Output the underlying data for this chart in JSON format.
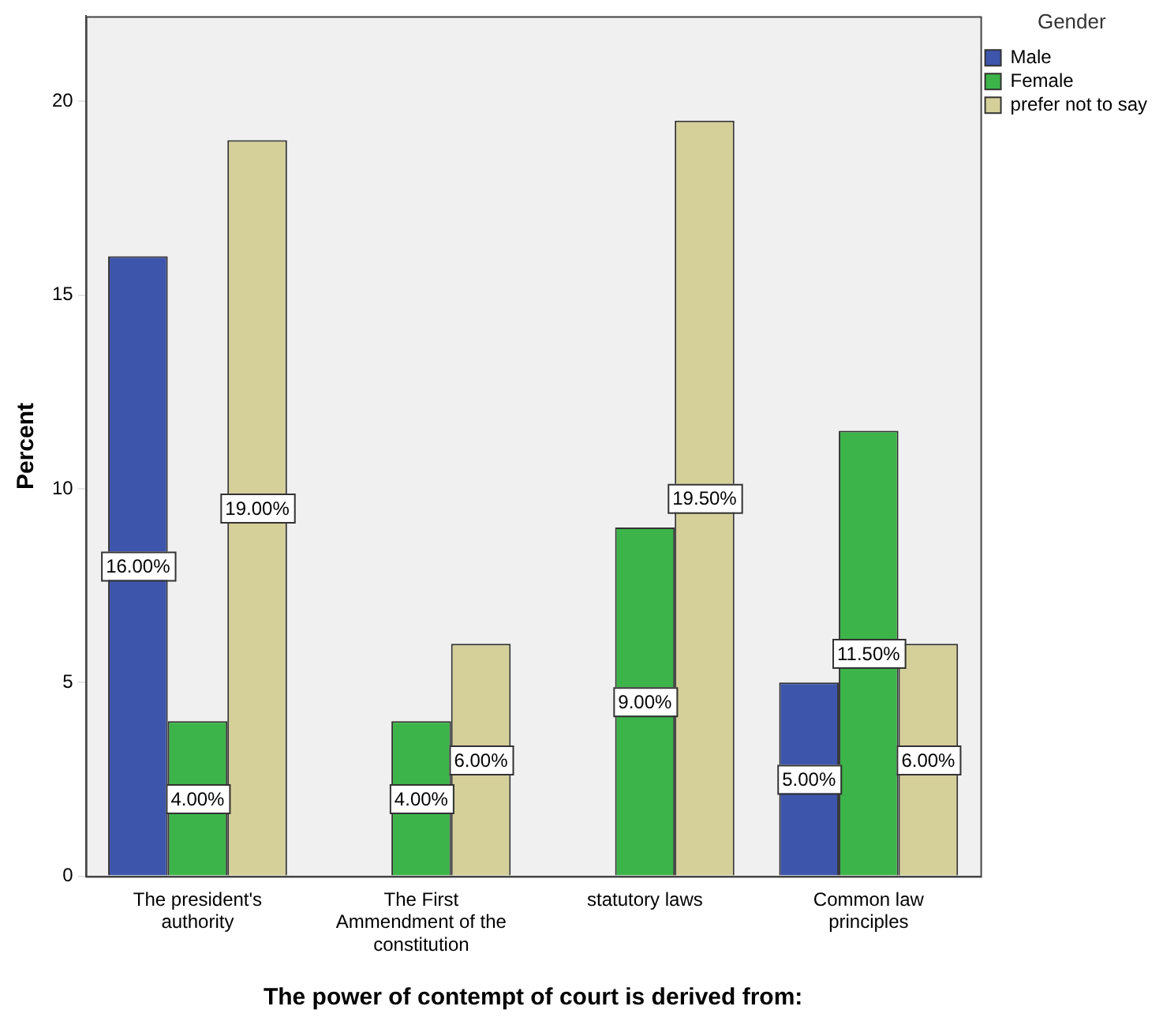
{
  "chart_data": {
    "type": "bar",
    "xlabel": "The power of contempt of court is derived from:",
    "ylabel": "Percent",
    "legend_title": "Gender",
    "categories": [
      "The president's authority",
      "The First Ammendment of the constitution",
      "statutory laws",
      "Common law principles"
    ],
    "series": [
      {
        "name": "Male",
        "color": "#3d55ab",
        "values": [
          16,
          null,
          null,
          5
        ],
        "value_labels": [
          "16.00%",
          null,
          null,
          "5.00%"
        ]
      },
      {
        "name": "Female",
        "color": "#3cb449",
        "values": [
          4,
          4,
          9,
          11.5
        ],
        "value_labels": [
          "4.00%",
          "4.00%",
          "9.00%",
          "11.50%"
        ]
      },
      {
        "name": "prefer not to say",
        "color": "#d5cf9a",
        "values": [
          19,
          6,
          19.5,
          6
        ],
        "value_labels": [
          "19.00%",
          "6.00%",
          "19.50%",
          "6.00%"
        ]
      }
    ],
    "ylim": [
      0,
      22.2
    ],
    "yticks": [
      0,
      5,
      10,
      15,
      20
    ],
    "grid": false,
    "legend": "top right"
  }
}
